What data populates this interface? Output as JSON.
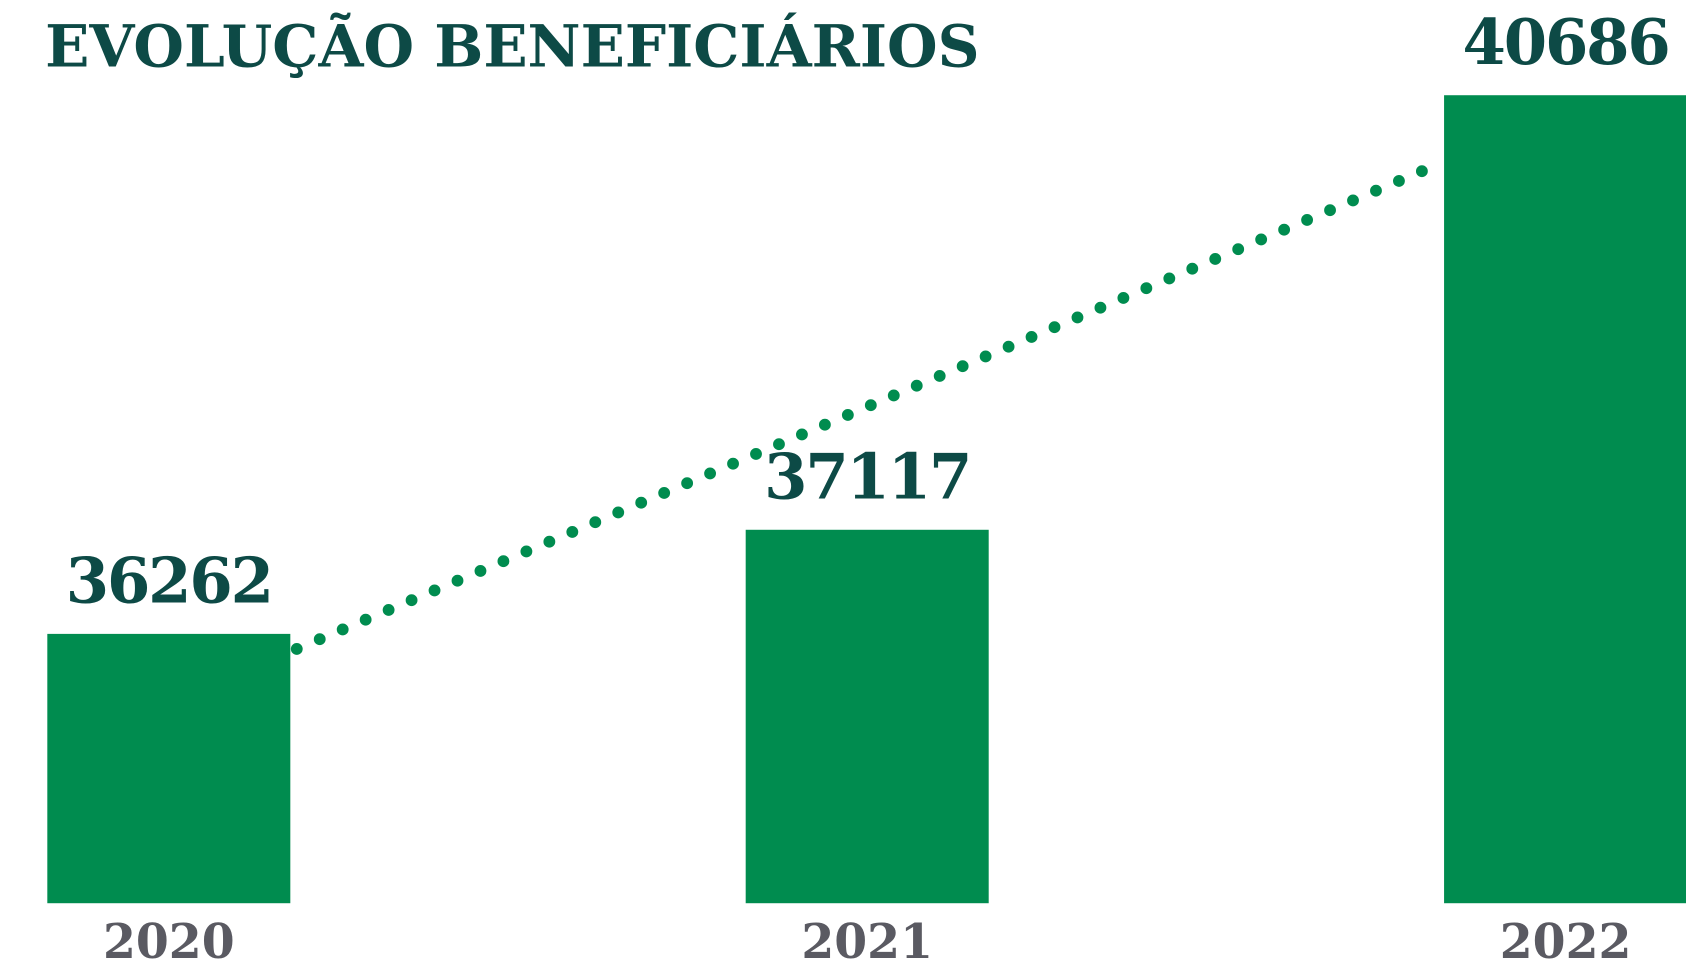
{
  "chart_data": {
    "type": "bar",
    "title": "EVOLUÇÃO BENEFICIÁRIOS",
    "categories": [
      "2020",
      "2021",
      "2022"
    ],
    "values": [
      36262,
      37117,
      40686
    ],
    "color": "#008c4f",
    "ylim": [
      34050,
      41000
    ]
  }
}
